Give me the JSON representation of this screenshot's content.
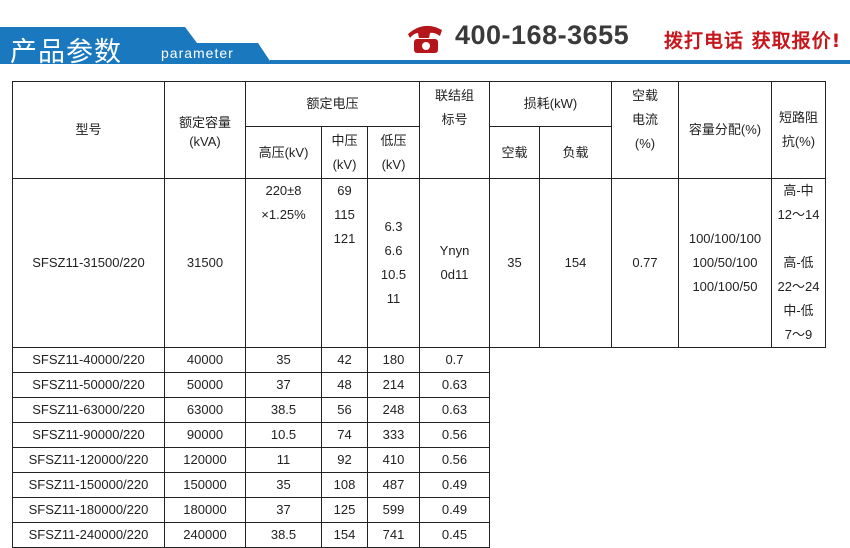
{
  "header": {
    "title": "产品参数",
    "subtitle": "parameter",
    "phone": "400-168-3655",
    "cta": "拨打电话 获取报价!",
    "brand_color": "#1a78be",
    "accent_color": "#c8161d"
  },
  "table": {
    "headers": {
      "model": "型号",
      "capacity": "额定容量",
      "capacity_unit": "(kVA)",
      "voltage": "额定电压",
      "hv": "高压(kV)",
      "mv": "中压",
      "mv_unit": "(kV)",
      "lv": "低压",
      "lv_unit": "(kV)",
      "group": "联结组",
      "group2": "标号",
      "loss": "损耗(kW)",
      "noload": "空载",
      "load": "负载",
      "current": "空载",
      "current2": "电流",
      "current3": "(%)",
      "dist": "容量分配(%)",
      "imp": "短路阻",
      "imp2": "抗(%)"
    },
    "hv": [
      "220±8",
      "×1.25%"
    ],
    "mv": [
      "69",
      "115",
      "121"
    ],
    "lv_first": [
      "6.3",
      "6.6",
      "10.5",
      "11"
    ],
    "group": [
      "Ynyn",
      "0d11"
    ],
    "dist": [
      "100/100/100",
      "100/50/100",
      "100/100/50"
    ],
    "imp": [
      "高-中",
      "12～14",
      "",
      "高-低",
      "22～24",
      "中-低",
      "7～9"
    ],
    "rows": [
      {
        "model": "SFSZ11-31500/220",
        "cap": "31500",
        "noload": "35",
        "load": "154",
        "current": "0.77"
      },
      {
        "model": "SFSZ11-40000/220",
        "cap": "40000",
        "lv": "35",
        "noload": "42",
        "load": "180",
        "current": "0.7"
      },
      {
        "model": "SFSZ11-50000/220",
        "cap": "50000",
        "lv": "37",
        "noload": "48",
        "load": "214",
        "current": "0.63"
      },
      {
        "model": "SFSZ11-63000/220",
        "cap": "63000",
        "lv": "38.5",
        "noload": "56",
        "load": "248",
        "current": "0.63"
      },
      {
        "model": "SFSZ11-90000/220",
        "cap": "90000",
        "lv": "10.5",
        "noload": "74",
        "load": "333",
        "current": "0.56"
      },
      {
        "model": "SFSZ11-120000/220",
        "cap": "120000",
        "lv": "11",
        "noload": "92",
        "load": "410",
        "current": "0.56"
      },
      {
        "model": "SFSZ11-150000/220",
        "cap": "150000",
        "lv": "35",
        "noload": "108",
        "load": "487",
        "current": "0.49"
      },
      {
        "model": "SFSZ11-180000/220",
        "cap": "180000",
        "lv": "37",
        "noload": "125",
        "load": "599",
        "current": "0.49"
      },
      {
        "model": "SFSZ11-240000/220",
        "cap": "240000",
        "lv": "38.5",
        "noload": "154",
        "load": "741",
        "current": "0.45"
      }
    ]
  }
}
